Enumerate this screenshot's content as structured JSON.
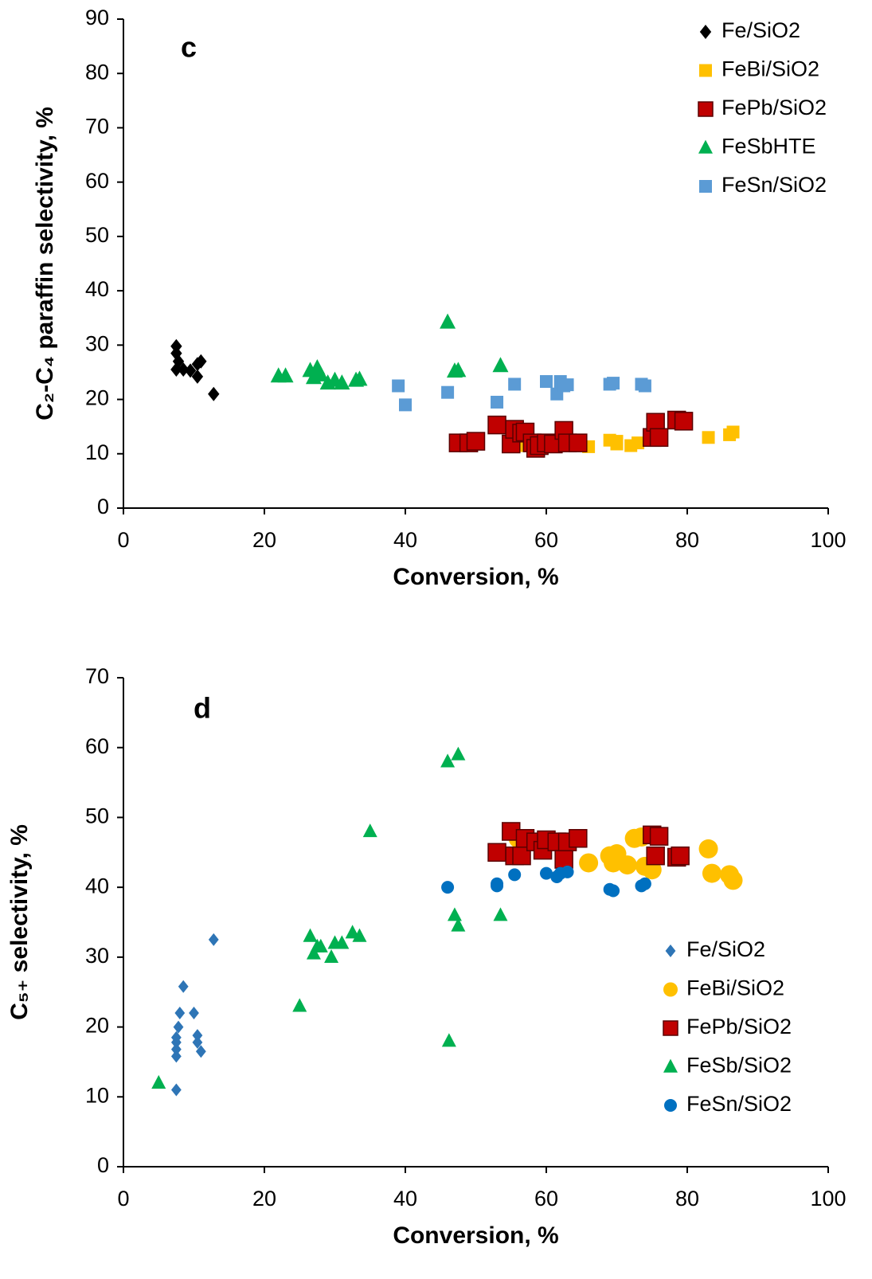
{
  "chart_data": [
    {
      "type": "scatter",
      "annotation": "c",
      "x_label": "Conversion, %",
      "y_label": "C₂-C₄ paraffin selectivity, %",
      "xlim": [
        0,
        100
      ],
      "xticks": [
        0,
        20,
        40,
        60,
        80,
        100
      ],
      "ylim": [
        0,
        90
      ],
      "yticks": [
        0,
        10,
        20,
        30,
        40,
        50,
        60,
        70,
        80,
        90
      ],
      "grid": false,
      "legend": "upper right",
      "series": [
        {
          "name": "Fe/SiO2",
          "color": "#000000",
          "marker": "diamond",
          "x": [
            7.5,
            7.5,
            7.8,
            7.5,
            8.5,
            9.5,
            10.5,
            10.5,
            11,
            12.8
          ],
          "values": [
            29.8,
            28.5,
            27,
            25.5,
            25.5,
            25.3,
            24.2,
            26.5,
            27,
            21
          ]
        },
        {
          "name": "FeBi/SiO2",
          "color": "#ffc000",
          "marker": "square",
          "x": [
            56,
            58,
            60,
            62,
            66,
            69,
            70,
            70,
            72,
            73,
            75,
            83,
            86,
            86.5
          ],
          "values": [
            11.5,
            12,
            11.5,
            11.5,
            11.3,
            12.5,
            11.8,
            12.3,
            11.5,
            12,
            12.5,
            13,
            13.5,
            14
          ]
        },
        {
          "name": "FePb/SiO2",
          "color": "#c00000",
          "marker": "square",
          "x": [
            47.5,
            49,
            50,
            53,
            55,
            55.5,
            56.5,
            57,
            58,
            58.5,
            59,
            60,
            61,
            62.5,
            63,
            64.5,
            75,
            75.5,
            76,
            78.5,
            79.5
          ],
          "values": [
            12,
            12,
            12.3,
            15.3,
            11.8,
            14.5,
            13.8,
            14,
            12,
            11,
            11.5,
            12,
            11.8,
            14.3,
            12,
            12,
            13,
            15.8,
            13,
            16.2,
            16
          ]
        },
        {
          "name": "FeSbHTE",
          "color": "#00b050",
          "marker": "triangle",
          "x": [
            22,
            23,
            26.5,
            27,
            27.5,
            28,
            29,
            30,
            31,
            33,
            33.5,
            46,
            47,
            47.5,
            53.5
          ],
          "values": [
            24.3,
            24.3,
            25.3,
            24,
            25.8,
            24.5,
            23,
            23.5,
            23,
            23.5,
            23.7,
            34.2,
            25.2,
            25.3,
            26.2
          ]
        },
        {
          "name": "FeSn/SiO2",
          "color": "#5b9bd5",
          "marker": "square",
          "x": [
            39,
            40,
            46,
            53,
            55.5,
            60,
            61.5,
            62,
            62.5,
            63,
            69,
            69.5,
            73.5,
            74
          ],
          "values": [
            22.5,
            19,
            21.3,
            19.5,
            22.8,
            23.3,
            21,
            23.3,
            22.5,
            22.7,
            22.8,
            23,
            22.8,
            22.5
          ]
        }
      ]
    },
    {
      "type": "scatter",
      "annotation": "d",
      "x_label": "Conversion, %",
      "y_label": "C₅₊ selectivity, %",
      "xlim": [
        0,
        100
      ],
      "xticks": [
        0,
        20,
        40,
        60,
        80,
        100
      ],
      "ylim": [
        0,
        70
      ],
      "yticks": [
        0,
        10,
        20,
        30,
        40,
        50,
        60,
        70
      ],
      "grid": false,
      "legend": "lower right",
      "series": [
        {
          "name": "Fe/SiO2",
          "color": "#2e75b6",
          "marker": "diamond",
          "x": [
            7.5,
            7.5,
            7.5,
            7.5,
            7.5,
            7.8,
            8,
            8.5,
            10,
            10.5,
            11,
            10.5,
            12.8
          ],
          "values": [
            11,
            15.8,
            16.8,
            17.8,
            18.5,
            20,
            22,
            25.8,
            22,
            18.8,
            16.5,
            17.8,
            32.5
          ]
        },
        {
          "name": "FeBi/SiO2",
          "color": "#ffc000",
          "marker": "circle",
          "x": [
            56,
            66,
            69,
            69.5,
            70,
            71.5,
            72.5,
            73.5,
            74,
            75,
            83,
            83.5,
            86,
            86.5
          ],
          "values": [
            47,
            43.5,
            44.5,
            43.5,
            44.8,
            43.2,
            47,
            47.2,
            43,
            42.5,
            45.5,
            42,
            41.8,
            41
          ]
        },
        {
          "name": "FePb/SiO2",
          "color": "#c00000",
          "marker": "square",
          "x": [
            53,
            55,
            55.5,
            56.5,
            57,
            58.5,
            59.5,
            60,
            61.5,
            62.5,
            63,
            64.5,
            75,
            75.5,
            76,
            78.5,
            79
          ],
          "values": [
            45,
            48,
            44.5,
            44.5,
            47,
            46.5,
            45.3,
            46.8,
            46.5,
            44,
            46.5,
            47,
            47.5,
            44.5,
            47.3,
            44.3,
            44.5
          ]
        },
        {
          "name": "FeSb/SiO2",
          "color": "#00b050",
          "marker": "triangle",
          "x": [
            5,
            25,
            26.5,
            27,
            27.5,
            28,
            29.5,
            30,
            31,
            32.5,
            33.5,
            35,
            46,
            47.5,
            46.2,
            47,
            47.5,
            53.5
          ],
          "values": [
            12,
            23,
            33,
            30.5,
            31.5,
            31.5,
            30,
            32,
            32,
            33.5,
            33,
            48,
            58,
            59,
            18,
            36,
            34.5,
            36
          ]
        },
        {
          "name": "FeSn/SiO2",
          "color": "#0070c0",
          "marker": "circle",
          "x": [
            46,
            53,
            53,
            55.5,
            60,
            61.5,
            62,
            63,
            69,
            69.5,
            73.5,
            74
          ],
          "values": [
            40,
            40.2,
            40.5,
            41.8,
            42,
            41.5,
            42,
            42.2,
            39.7,
            39.5,
            40.2,
            40.5
          ]
        }
      ]
    }
  ]
}
